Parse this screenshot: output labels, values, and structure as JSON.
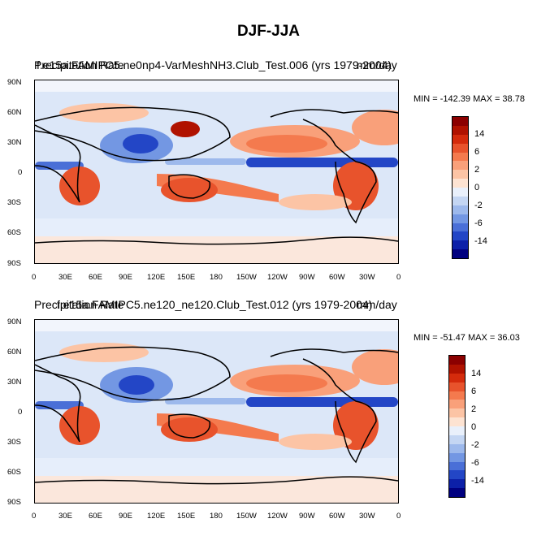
{
  "figure": {
    "title": "DJF-JJA"
  },
  "panels": [
    {
      "title_left": "Precipitation Rate",
      "title_center": "f.e15a.FAMIPC5.ne0np4-VarMeshNH3.Club_Test.006 (yrs 1979-2004)",
      "title_right": "mm/day",
      "minmax": "MIN = -142.39 MAX =  38.78"
    },
    {
      "title_left": "Precipitation Rate",
      "title_center": "f.e15a.FAMIPC5.ne120_ne120.Club_Test.012 (yrs 1979-2004)",
      "title_right": "mm/day",
      "minmax": "MIN = -51.47 MAX =  36.03"
    }
  ],
  "axes": {
    "lat_labels": [
      "90N",
      "60N",
      "30N",
      "0",
      "30S",
      "60S",
      "90S"
    ],
    "lon_labels": [
      "0",
      "30E",
      "60E",
      "90E",
      "120E",
      "150E",
      "180",
      "150W",
      "120W",
      "90W",
      "60W",
      "30W",
      "0"
    ]
  },
  "colorbar": {
    "colors": [
      "#8b0000",
      "#b01200",
      "#d42b0c",
      "#e8532c",
      "#f47a4e",
      "#f9a07a",
      "#fcc4a5",
      "#fde3d2",
      "#e9f0fb",
      "#c4d6f3",
      "#9db9ec",
      "#7397e3",
      "#4a6fd7",
      "#2346c6",
      "#0c20a8",
      "#000080"
    ],
    "labels": [
      "14",
      "6",
      "2",
      "0",
      "-2",
      "-6",
      "-14"
    ]
  },
  "map_colors": {
    "ocean_base": "#dce7f8",
    "coast": "#000000"
  }
}
